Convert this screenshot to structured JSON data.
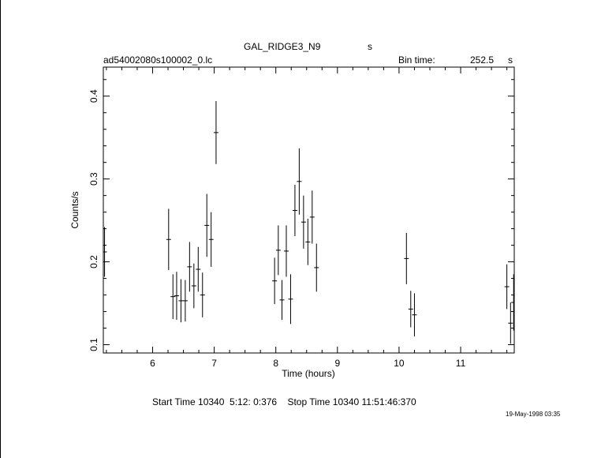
{
  "header": {
    "object": "GAL_RIDGE3_N9",
    "object_unit": "s",
    "filename": "ad54002080s100002_0.lc",
    "bin_label": "Bin time:",
    "bin_value": "252.5",
    "bin_unit": "s"
  },
  "footer": {
    "times": "Start Time 10340  5:12: 0:376    Stop Time 10340 11:51:46:370",
    "date": "19-May-1998 03:35"
  },
  "chart_data": {
    "type": "scatter",
    "title": "GAL_RIDGE3_N9",
    "xlabel": "Time (hours)",
    "ylabel": "Counts/s",
    "xlim": [
      5.2,
      11.87
    ],
    "ylim": [
      0.09,
      0.435
    ],
    "x_ticks": [
      6,
      7,
      8,
      9,
      10,
      11
    ],
    "x_tick_labels": [
      "6",
      "7",
      "8",
      "9",
      "10",
      "11"
    ],
    "y_ticks": [
      0.1,
      0.2,
      0.3,
      0.4
    ],
    "y_tick_labels": [
      "0.1",
      "0.2",
      "0.3",
      "0.4"
    ],
    "grid": false,
    "error_bars": true,
    "points": [
      {
        "x": 5.22,
        "y": 0.212,
        "yerr": 0.03
      },
      {
        "x": 6.26,
        "y": 0.227,
        "yerr": 0.037
      },
      {
        "x": 6.33,
        "y": 0.158,
        "yerr": 0.027
      },
      {
        "x": 6.39,
        "y": 0.159,
        "yerr": 0.029
      },
      {
        "x": 6.46,
        "y": 0.153,
        "yerr": 0.026
      },
      {
        "x": 6.53,
        "y": 0.153,
        "yerr": 0.025
      },
      {
        "x": 6.6,
        "y": 0.194,
        "yerr": 0.03
      },
      {
        "x": 6.67,
        "y": 0.171,
        "yerr": 0.027
      },
      {
        "x": 6.74,
        "y": 0.191,
        "yerr": 0.027
      },
      {
        "x": 6.81,
        "y": 0.16,
        "yerr": 0.027
      },
      {
        "x": 6.88,
        "y": 0.244,
        "yerr": 0.038
      },
      {
        "x": 6.95,
        "y": 0.227,
        "yerr": 0.033
      },
      {
        "x": 7.03,
        "y": 0.356,
        "yerr": 0.038
      },
      {
        "x": 7.98,
        "y": 0.177,
        "yerr": 0.028
      },
      {
        "x": 8.04,
        "y": 0.214,
        "yerr": 0.03
      },
      {
        "x": 8.1,
        "y": 0.154,
        "yerr": 0.024
      },
      {
        "x": 8.17,
        "y": 0.213,
        "yerr": 0.031
      },
      {
        "x": 8.24,
        "y": 0.155,
        "yerr": 0.03
      },
      {
        "x": 8.31,
        "y": 0.262,
        "yerr": 0.031
      },
      {
        "x": 8.38,
        "y": 0.297,
        "yerr": 0.04
      },
      {
        "x": 8.45,
        "y": 0.248,
        "yerr": 0.032
      },
      {
        "x": 8.52,
        "y": 0.224,
        "yerr": 0.028
      },
      {
        "x": 8.59,
        "y": 0.254,
        "yerr": 0.032
      },
      {
        "x": 8.66,
        "y": 0.193,
        "yerr": 0.029
      },
      {
        "x": 10.12,
        "y": 0.204,
        "yerr": 0.031
      },
      {
        "x": 10.19,
        "y": 0.143,
        "yerr": 0.022
      },
      {
        "x": 10.25,
        "y": 0.136,
        "yerr": 0.026
      },
      {
        "x": 11.75,
        "y": 0.17,
        "yerr": 0.027
      },
      {
        "x": 11.81,
        "y": 0.126,
        "yerr": 0.025
      },
      {
        "x": 11.86,
        "y": 0.151,
        "yerr": 0.034
      }
    ]
  }
}
